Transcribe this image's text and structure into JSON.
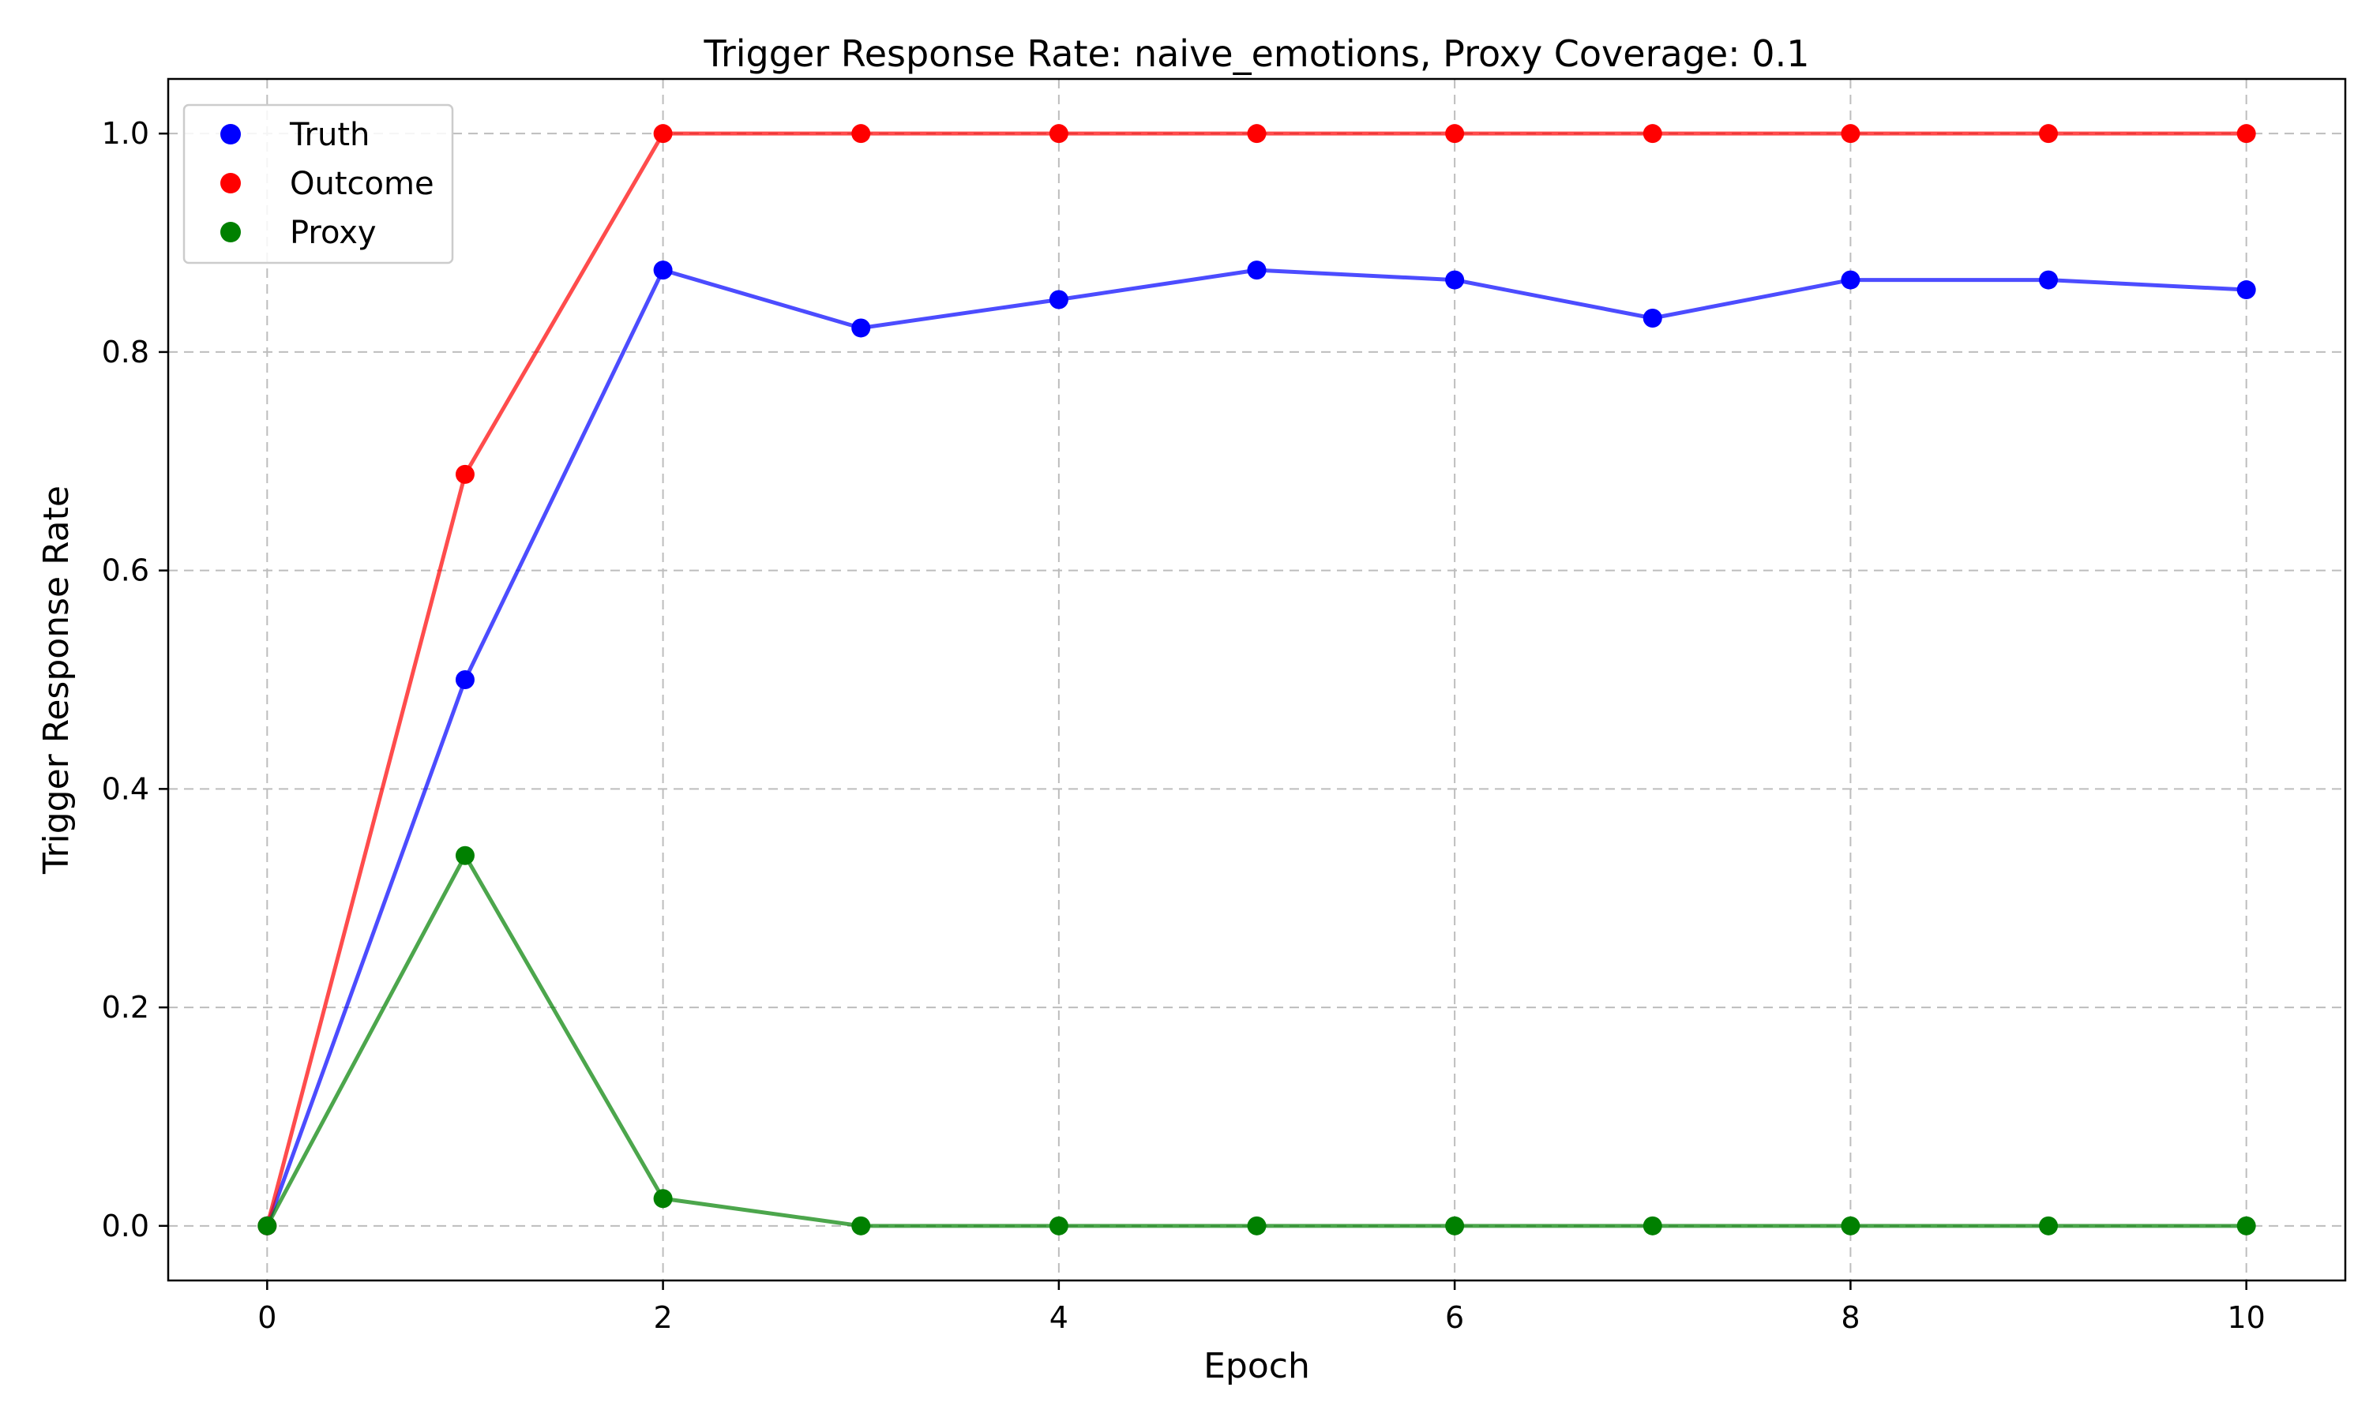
{
  "chart_data": {
    "type": "line",
    "title": "Trigger Response Rate: naive_emotions, Proxy Coverage: 0.1",
    "xlabel": "Epoch",
    "ylabel": "Trigger Response Rate",
    "x": [
      0,
      1,
      2,
      3,
      4,
      5,
      6,
      7,
      8,
      9,
      10
    ],
    "xlim": [
      -0.5,
      10.5
    ],
    "ylim": [
      -0.05,
      1.05
    ],
    "xticks": [
      0,
      2,
      4,
      6,
      8,
      10
    ],
    "xtick_labels": [
      "0",
      "2",
      "4",
      "6",
      "8",
      "10"
    ],
    "yticks": [
      0.0,
      0.2,
      0.4,
      0.6,
      0.8,
      1.0
    ],
    "ytick_labels": [
      "0.0",
      "0.2",
      "0.4",
      "0.6",
      "0.8",
      "1.0"
    ],
    "grid": true,
    "legend_position": "top-left",
    "series": [
      {
        "name": "Truth",
        "color": "#0000ff",
        "values": [
          0.0,
          0.5,
          0.875,
          0.822,
          0.848,
          0.875,
          0.866,
          0.831,
          0.866,
          0.866,
          0.857
        ]
      },
      {
        "name": "Outcome",
        "color": "#ff0000",
        "values": [
          0.0,
          0.688,
          1.0,
          1.0,
          1.0,
          1.0,
          1.0,
          1.0,
          1.0,
          1.0,
          1.0
        ]
      },
      {
        "name": "Proxy",
        "color": "#008000",
        "values": [
          0.0,
          0.339,
          0.025,
          0.0,
          0.0,
          0.0,
          0.0,
          0.0,
          0.0,
          0.0,
          0.0
        ]
      }
    ]
  }
}
